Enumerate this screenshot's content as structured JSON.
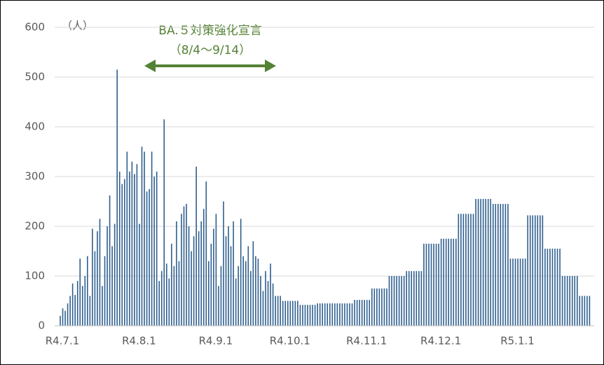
{
  "chart_data": {
    "type": "bar",
    "y_unit": "（人）",
    "annotations": [
      "BA.５対策強化宣言",
      "（8/4～9/14）"
    ],
    "annotation_color": "#548235",
    "color": "#2f5f8f",
    "grid": true,
    "ylim": [
      0,
      600
    ],
    "yticks": [
      0,
      100,
      200,
      300,
      400,
      500,
      600
    ],
    "categories": [
      "R4.7.1",
      null,
      null,
      null,
      null,
      null,
      null,
      null,
      null,
      null,
      null,
      null,
      null,
      null,
      null,
      null,
      null,
      null,
      null,
      null,
      null,
      null,
      null,
      null,
      null,
      null,
      null,
      null,
      null,
      null,
      null,
      "R4.8.1",
      null,
      null,
      null,
      null,
      null,
      null,
      null,
      null,
      null,
      null,
      null,
      null,
      null,
      null,
      null,
      null,
      null,
      null,
      null,
      null,
      null,
      null,
      null,
      null,
      null,
      null,
      null,
      null,
      null,
      null,
      "R4.9.1",
      null,
      null,
      null,
      null,
      null,
      null,
      null,
      null,
      null,
      null,
      null,
      null,
      null,
      null,
      null,
      null,
      null,
      null,
      null,
      null,
      null,
      null,
      null,
      null,
      null,
      null,
      null,
      null,
      null,
      "R4.10.1",
      null,
      null,
      null,
      null,
      null,
      null,
      null,
      null,
      null,
      null,
      null,
      null,
      null,
      null,
      null,
      null,
      null,
      null,
      null,
      null,
      null,
      null,
      null,
      null,
      null,
      null,
      null,
      null,
      null,
      null,
      "R4.11.1",
      null,
      null,
      null,
      null,
      null,
      null,
      null,
      null,
      null,
      null,
      null,
      null,
      null,
      null,
      null,
      null,
      null,
      null,
      null,
      null,
      null,
      null,
      null,
      null,
      null,
      null,
      null,
      null,
      null,
      "R4.12.1",
      null,
      null,
      null,
      null,
      null,
      null,
      null,
      null,
      null,
      null,
      null,
      null,
      null,
      null,
      null,
      null,
      null,
      null,
      null,
      null,
      null,
      null,
      null,
      null,
      null,
      null,
      null,
      null,
      null,
      null,
      "R5.1.1",
      null,
      null,
      null,
      null,
      null,
      null,
      null,
      null,
      null,
      null,
      null,
      null,
      null,
      null,
      null,
      null,
      null,
      null,
      null,
      null,
      null,
      null,
      null,
      null,
      null,
      null,
      null,
      null,
      null,
      null
    ],
    "values": [
      20,
      35,
      30,
      45,
      60,
      85,
      62,
      90,
      135,
      80,
      100,
      140,
      60,
      195,
      150,
      190,
      215,
      80,
      140,
      200,
      262,
      160,
      205,
      515,
      310,
      285,
      295,
      350,
      310,
      330,
      305,
      325,
      205,
      360,
      350,
      270,
      275,
      350,
      300,
      310,
      90,
      110,
      415,
      125,
      95,
      165,
      120,
      210,
      130,
      225,
      240,
      245,
      200,
      150,
      180,
      320,
      190,
      210,
      235,
      290,
      130,
      165,
      195,
      225,
      80,
      120,
      250,
      180,
      200,
      160,
      210,
      95,
      120,
      215,
      140,
      130,
      160,
      110,
      170,
      140,
      135,
      100,
      70,
      110,
      90,
      125,
      85,
      60,
      60,
      60,
      50,
      50,
      50,
      50,
      50,
      50,
      50,
      42,
      42,
      42,
      42,
      42,
      42,
      42,
      45,
      45,
      45,
      45,
      45,
      45,
      45,
      45,
      45,
      45,
      45,
      45,
      45,
      45,
      45,
      52,
      52,
      52,
      52,
      52,
      52,
      52,
      75,
      75,
      75,
      75,
      75,
      75,
      75,
      100,
      100,
      100,
      100,
      100,
      100,
      100,
      110,
      110,
      110,
      110,
      110,
      110,
      110,
      165,
      165,
      165,
      165,
      165,
      165,
      165,
      175,
      175,
      175,
      175,
      175,
      175,
      175,
      225,
      225,
      225,
      225,
      225,
      225,
      225,
      255,
      255,
      255,
      255,
      255,
      255,
      255,
      245,
      245,
      245,
      245,
      245,
      245,
      245,
      135,
      135,
      135,
      135,
      135,
      135,
      135,
      222,
      222,
      222,
      222,
      222,
      222,
      222,
      155,
      155,
      155,
      155,
      155,
      155,
      155,
      100,
      100,
      100,
      100,
      100,
      100,
      100,
      60,
      60,
      60,
      60,
      60
    ]
  }
}
